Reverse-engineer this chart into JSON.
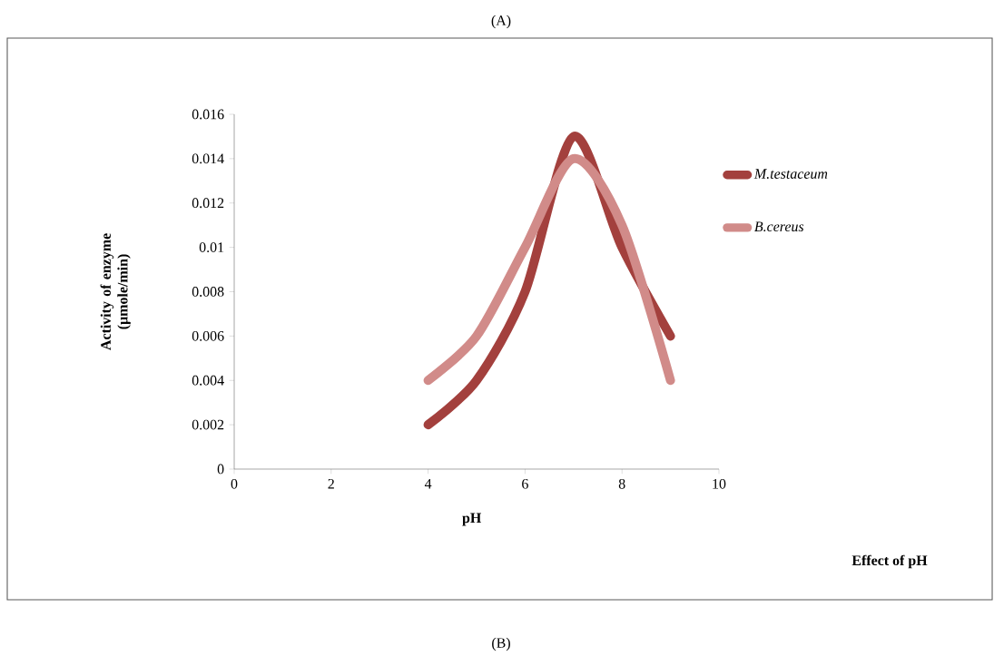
{
  "chart_data": {
    "type": "line",
    "title": "(A)",
    "xlabel": "pH",
    "ylabel": "Activity of enzyme (µmole/min)",
    "annotations": [
      "Effect of pH",
      "(B)"
    ],
    "x": [
      4,
      5,
      6,
      7,
      8,
      9
    ],
    "series": [
      {
        "name": "M.testaceum",
        "color": "#a3403d",
        "values": [
          0.002,
          0.004,
          0.008,
          0.015,
          0.01,
          0.006
        ]
      },
      {
        "name": "B.cereus",
        "color": "#d18b89",
        "values": [
          0.004,
          0.006,
          0.01,
          0.014,
          0.011,
          0.004
        ]
      }
    ],
    "xlim": [
      0,
      10
    ],
    "ylim": [
      0,
      0.016
    ],
    "xticks": [
      0,
      2,
      4,
      6,
      8,
      10
    ],
    "yticks": [
      0,
      0.002,
      0.004,
      0.006,
      0.008,
      0.01,
      0.012,
      0.014,
      0.016
    ],
    "legend": "right",
    "grid": false,
    "marker": "none",
    "line_style": "solid"
  }
}
